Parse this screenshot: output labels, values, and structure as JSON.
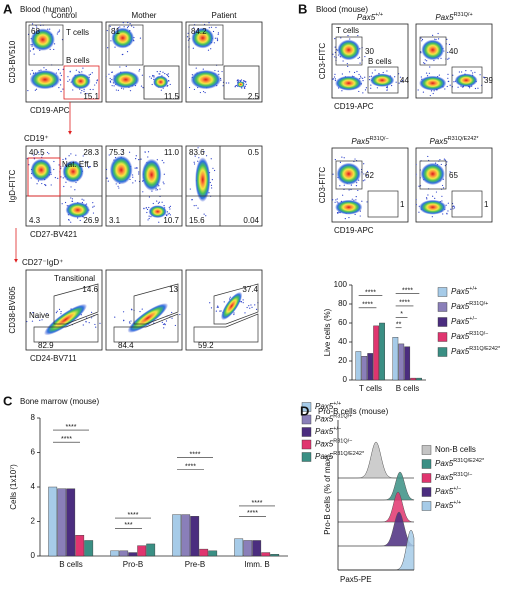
{
  "panels": {
    "A": {
      "letter": "A",
      "title": "Blood (human)",
      "columns": [
        "Control",
        "Mother",
        "Patient"
      ],
      "row1": {
        "y_label": "CD3-BV510",
        "x_label": "CD19-APC",
        "gates": [
          "T cells",
          "B cells"
        ],
        "plots": [
          [
            "68",
            "15.1"
          ],
          [
            "81",
            "11.5"
          ],
          [
            "84.2",
            "2.5"
          ]
        ]
      },
      "row2": {
        "parent": "CD19⁺",
        "y_label": "IgD-FITC",
        "x_label": "CD27-BV421",
        "gate": "Nat. Eff. B",
        "plots": [
          [
            "40.5",
            "28.3",
            "4.3",
            "26.9"
          ],
          [
            "75.3",
            "11.0",
            "3.1",
            "10.7"
          ],
          [
            "83.6",
            "0.5",
            "15.6",
            "0.04"
          ]
        ]
      },
      "row3": {
        "parent": "CD27⁻IgD⁺",
        "y_label": "CD38-BV605",
        "x_label": "CD24-BV711",
        "gates": [
          "Transitional",
          "Naive"
        ],
        "plots": [
          [
            "14.6",
            "82.9"
          ],
          [
            "13",
            "84.4"
          ],
          [
            "37.4",
            "59.2"
          ]
        ]
      }
    },
    "B": {
      "letter": "B",
      "title": "Blood (mouse)",
      "y_label": "CD3-FITC",
      "x_label": "CD19-APC",
      "gates": [
        "T cells",
        "B cells"
      ],
      "plots": [
        {
          "genotype": {
            "gene": "Pax5",
            "allele": "+/+"
          },
          "values": [
            "30",
            "44"
          ]
        },
        {
          "genotype": {
            "gene": "Pax5",
            "allele": "R31Q/+"
          },
          "values": [
            "40",
            "39"
          ]
        },
        {
          "genotype": {
            "gene": "Pax5",
            "allele": "R31Q/−"
          },
          "values": [
            "62",
            "1"
          ]
        },
        {
          "genotype": {
            "gene": "Pax5",
            "allele": "R31Q/E242*"
          },
          "values": [
            "65",
            "1"
          ]
        }
      ]
    },
    "C": {
      "letter": "C"
    },
    "D": {
      "letter": "D",
      "title": "Pro-B cells (mouse)",
      "y_label": "Pro-B cells (% of max)",
      "x_label": "Pax5-PE",
      "legend": [
        {
          "label": "Non-B cells",
          "color": "#c4c4c4"
        },
        {
          "gene": "Pax5",
          "allele": "R31Q/E242*",
          "color": "#3a8f84"
        },
        {
          "gene": "Pax5",
          "allele": "R31Q/−",
          "color": "#e0356f"
        },
        {
          "gene": "Pax5",
          "allele": "+/−",
          "color": "#4b2d7f"
        },
        {
          "gene": "Pax5",
          "allele": "+/+",
          "color": "#a6cbe8"
        }
      ]
    }
  },
  "chart_data": [
    {
      "type": "bar",
      "ylabel": "Live cells (%)",
      "categories": [
        "T cells",
        "B cells"
      ],
      "series": [
        {
          "name": {
            "gene": "Pax5",
            "allele": "+/+"
          },
          "color": "#a6cbe8",
          "values": [
            30,
            45
          ]
        },
        {
          "name": {
            "gene": "Pax5",
            "allele": "R31Q/+"
          },
          "color": "#8a7fb9",
          "values": [
            25,
            38
          ]
        },
        {
          "name": {
            "gene": "Pax5",
            "allele": "+/−"
          },
          "color": "#4b2d7f",
          "values": [
            28,
            35
          ]
        },
        {
          "name": {
            "gene": "Pax5",
            "allele": "R31Q/−"
          },
          "color": "#e0356f",
          "values": [
            57,
            2
          ]
        },
        {
          "name": {
            "gene": "Pax5",
            "allele": "R31Q/E242*"
          },
          "color": "#3a8f84",
          "values": [
            60,
            2
          ]
        }
      ],
      "ylim": [
        0,
        100
      ],
      "yticks": [
        0,
        20,
        40,
        60,
        80,
        100
      ],
      "annotations": [
        "****",
        "****",
        "**",
        "*",
        "****",
        "****"
      ]
    },
    {
      "type": "bar",
      "title": "Bone marrow (mouse)",
      "ylabel": "Cells (1x10⁷)",
      "categories": [
        "B cells",
        "Pro-B",
        "Pre-B",
        "Imm. B"
      ],
      "series": [
        {
          "name": {
            "gene": "Pax5",
            "allele": "+/+"
          },
          "color": "#a6cbe8",
          "values": [
            4.0,
            0.3,
            2.4,
            1.0
          ]
        },
        {
          "name": {
            "gene": "Pax5",
            "allele": "R31Q/+"
          },
          "color": "#8a7fb9",
          "values": [
            3.9,
            0.3,
            2.4,
            0.9
          ]
        },
        {
          "name": {
            "gene": "Pax5",
            "allele": "+/−"
          },
          "color": "#4b2d7f",
          "values": [
            3.9,
            0.2,
            2.3,
            0.9
          ]
        },
        {
          "name": {
            "gene": "Pax5",
            "allele": "R31Q/−"
          },
          "color": "#e0356f",
          "values": [
            1.2,
            0.6,
            0.4,
            0.2
          ]
        },
        {
          "name": {
            "gene": "Pax5",
            "allele": "R31Q/E242*"
          },
          "color": "#3a8f84",
          "values": [
            0.9,
            0.7,
            0.3,
            0.1
          ]
        }
      ],
      "ylim": [
        0,
        8
      ],
      "yticks": [
        0,
        2,
        4,
        6,
        8
      ],
      "annotations": [
        "****",
        "****",
        "****",
        "***",
        "****",
        "****",
        "****",
        "****"
      ]
    }
  ]
}
